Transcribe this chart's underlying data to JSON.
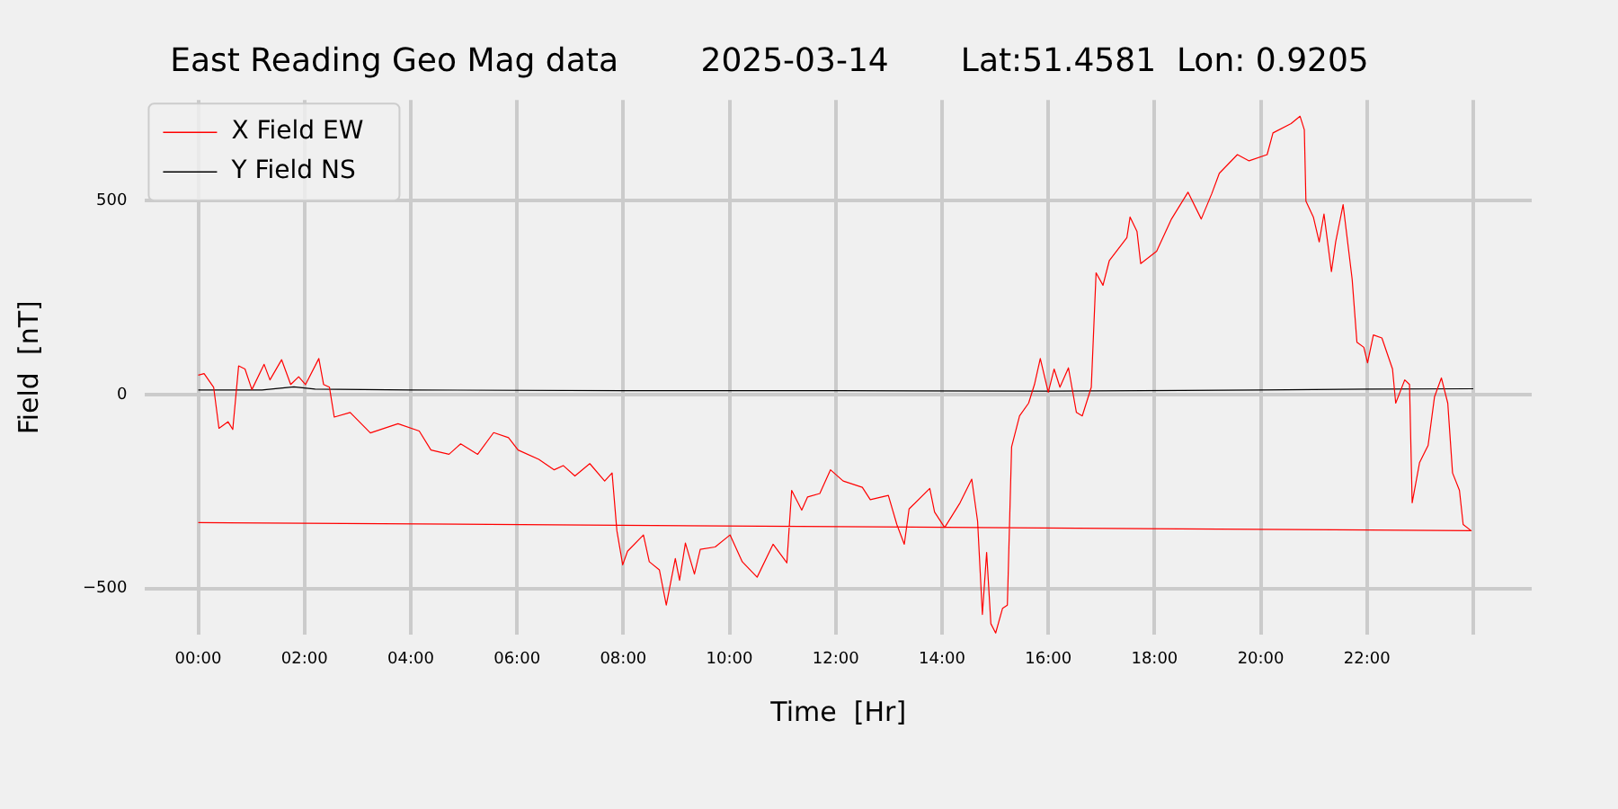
{
  "chart_data": {
    "type": "line",
    "title": "East Reading Geo Mag data        2025-03-14       Lat:51.4581  Lon: 0.9205",
    "xlabel": "Time  [Hr]",
    "ylabel": "Field  [nT]",
    "xlim": [
      -1,
      25.1
    ],
    "ylim": [
      -620,
      760
    ],
    "xticks": [
      {
        "value": 0,
        "label": "00:00"
      },
      {
        "value": 2,
        "label": "02:00"
      },
      {
        "value": 4,
        "label": "04:00"
      },
      {
        "value": 6,
        "label": "06:00"
      },
      {
        "value": 8,
        "label": "08:00"
      },
      {
        "value": 10,
        "label": "10:00"
      },
      {
        "value": 12,
        "label": "12:00"
      },
      {
        "value": 14,
        "label": "14:00"
      },
      {
        "value": 16,
        "label": "16:00"
      },
      {
        "value": 18,
        "label": "18:00"
      },
      {
        "value": 20,
        "label": "20:00"
      },
      {
        "value": 22,
        "label": "22:00"
      },
      {
        "value": 24,
        "label": null
      }
    ],
    "yticks": [
      {
        "value": -500,
        "label": "−500"
      },
      0,
      500
    ],
    "grid": true,
    "legend": "top left",
    "series": [
      {
        "name": "X Field EW",
        "color": "#ff0000",
        "x": [
          0,
          0.11,
          0.29,
          0.39,
          0.56,
          0.65,
          0.76,
          0.88,
          1.01,
          1.24,
          1.35,
          1.57,
          1.74,
          1.89,
          2.02,
          2.27,
          2.36,
          2.47,
          2.56,
          2.86,
          3.24,
          3.76,
          4.16,
          4.38,
          4.72,
          4.94,
          5.26,
          5.56,
          5.84,
          6.02,
          6.41,
          6.7,
          6.87,
          7.09,
          7.37,
          7.65,
          7.79,
          7.88,
          7.99,
          8.08,
          8.38,
          8.49,
          8.68,
          8.81,
          8.98,
          9.06,
          9.17,
          9.34,
          9.45,
          9.73,
          10.01,
          10.24,
          10.52,
          10.82,
          11.08,
          11.17,
          11.36,
          11.47,
          11.7,
          11.9,
          12.14,
          12.5,
          12.65,
          12.99,
          13.15,
          13.29,
          13.38,
          13.77,
          13.86,
          14.05,
          14.34,
          14.56,
          14.67,
          14.76,
          14.84,
          14.92,
          15.01,
          15.14,
          15.23,
          15.31,
          15.46,
          15.63,
          15.74,
          15.85,
          16,
          16.11,
          16.22,
          16.38,
          16.53,
          16.64,
          16.81,
          16.9,
          17.03,
          17.15,
          17.48,
          17.54,
          17.67,
          17.74,
          18.04,
          18.32,
          18.63,
          18.88,
          19.08,
          19.22,
          19.56,
          19.78,
          20.12,
          20.23,
          20.57,
          20.74,
          20.82,
          20.85,
          20.99,
          21.1,
          21.19,
          21.33,
          21.41,
          21.55,
          21.72,
          21.81,
          21.94,
          22.01,
          22.12,
          22.28,
          22.48,
          22.54,
          22.71,
          22.8,
          22.85,
          22.99,
          23.15,
          23.27,
          23.4,
          23.52,
          23.61,
          23.74,
          23.81,
          23.96,
          0
        ],
        "values": [
          50,
          54,
          19,
          -87,
          -70,
          -90,
          74,
          66,
          13,
          78,
          38,
          90,
          26,
          46,
          26,
          93,
          26,
          19,
          -58,
          -46,
          -99,
          -75,
          -94,
          -143,
          -154,
          -127,
          -154,
          -98,
          -111,
          -143,
          -167,
          -194,
          -183,
          -210,
          -178,
          -223,
          -202,
          -351,
          -439,
          -404,
          -362,
          -431,
          -452,
          -543,
          -423,
          -479,
          -383,
          -463,
          -399,
          -393,
          -362,
          -431,
          -471,
          -386,
          -434,
          -247,
          -298,
          -264,
          -255,
          -194,
          -223,
          -239,
          -271,
          -260,
          -335,
          -386,
          -295,
          -242,
          -303,
          -343,
          -279,
          -218,
          -327,
          -567,
          -407,
          -591,
          -615,
          -551,
          -543,
          -135,
          -55,
          -22,
          26,
          93,
          6,
          66,
          19,
          69,
          -46,
          -55,
          19,
          314,
          282,
          346,
          405,
          458,
          421,
          338,
          370,
          453,
          522,
          453,
          519,
          571,
          619,
          603,
          619,
          675,
          699,
          718,
          683,
          499,
          458,
          394,
          466,
          317,
          394,
          490,
          298,
          135,
          122,
          82,
          154,
          146,
          66,
          -22,
          38,
          26,
          -279,
          -175,
          -131,
          -6,
          43,
          -22,
          -202,
          -247,
          -335,
          -351,
          -330
        ]
      },
      {
        "name": "Y Field NS",
        "color": "#000000",
        "x": [
          0,
          1.2,
          1.8,
          2.2,
          4,
          8,
          12,
          16,
          20,
          22,
          24
        ],
        "values": [
          12,
          12,
          20,
          14,
          12,
          10,
          10,
          9,
          12,
          14,
          15
        ]
      }
    ]
  }
}
